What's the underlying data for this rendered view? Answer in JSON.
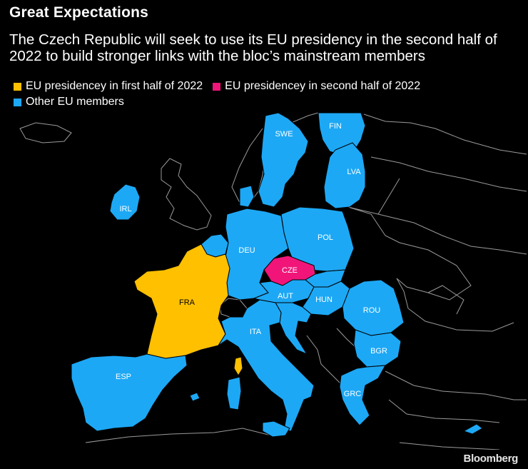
{
  "title": "Great Expectations",
  "subtitle": "The Czech Republic will seek to use its EU presidency in the second half of 2022 to build stronger links with the bloc’s mainstream members",
  "legend": [
    {
      "label": "EU presidencey in first half of 2022",
      "color": "#FFC000"
    },
    {
      "label": "EU presidencey in second half of 2022",
      "color": "#F1157A"
    },
    {
      "label": "Other EU members",
      "color": "#1DA8F5"
    }
  ],
  "colors": {
    "first_half": "#FFC000",
    "second_half": "#F1157A",
    "other": "#1DA8F5",
    "non_eu_border": "#9a9a9a",
    "background": "#000000"
  },
  "map": {
    "countries": [
      {
        "code": "SWE",
        "label": "SWE",
        "group": "other"
      },
      {
        "code": "FIN",
        "label": "FIN",
        "group": "other"
      },
      {
        "code": "LVA",
        "label": "LVA",
        "group": "other"
      },
      {
        "code": "IRL",
        "label": "IRL",
        "group": "other"
      },
      {
        "code": "DEU",
        "label": "DEU",
        "group": "other"
      },
      {
        "code": "POL",
        "label": "POL",
        "group": "other"
      },
      {
        "code": "CZE",
        "label": "CZE",
        "group": "second_half"
      },
      {
        "code": "FRA",
        "label": "FRA",
        "group": "first_half"
      },
      {
        "code": "AUT",
        "label": "AUT",
        "group": "other"
      },
      {
        "code": "HUN",
        "label": "HUN",
        "group": "other"
      },
      {
        "code": "ROU",
        "label": "ROU",
        "group": "other"
      },
      {
        "code": "ITA",
        "label": "ITA",
        "group": "other"
      },
      {
        "code": "BGR",
        "label": "BGR",
        "group": "other"
      },
      {
        "code": "ESP",
        "label": "ESP",
        "group": "other"
      },
      {
        "code": "GRC",
        "label": "GRC",
        "group": "other"
      }
    ]
  },
  "credit": "Bloomberg"
}
